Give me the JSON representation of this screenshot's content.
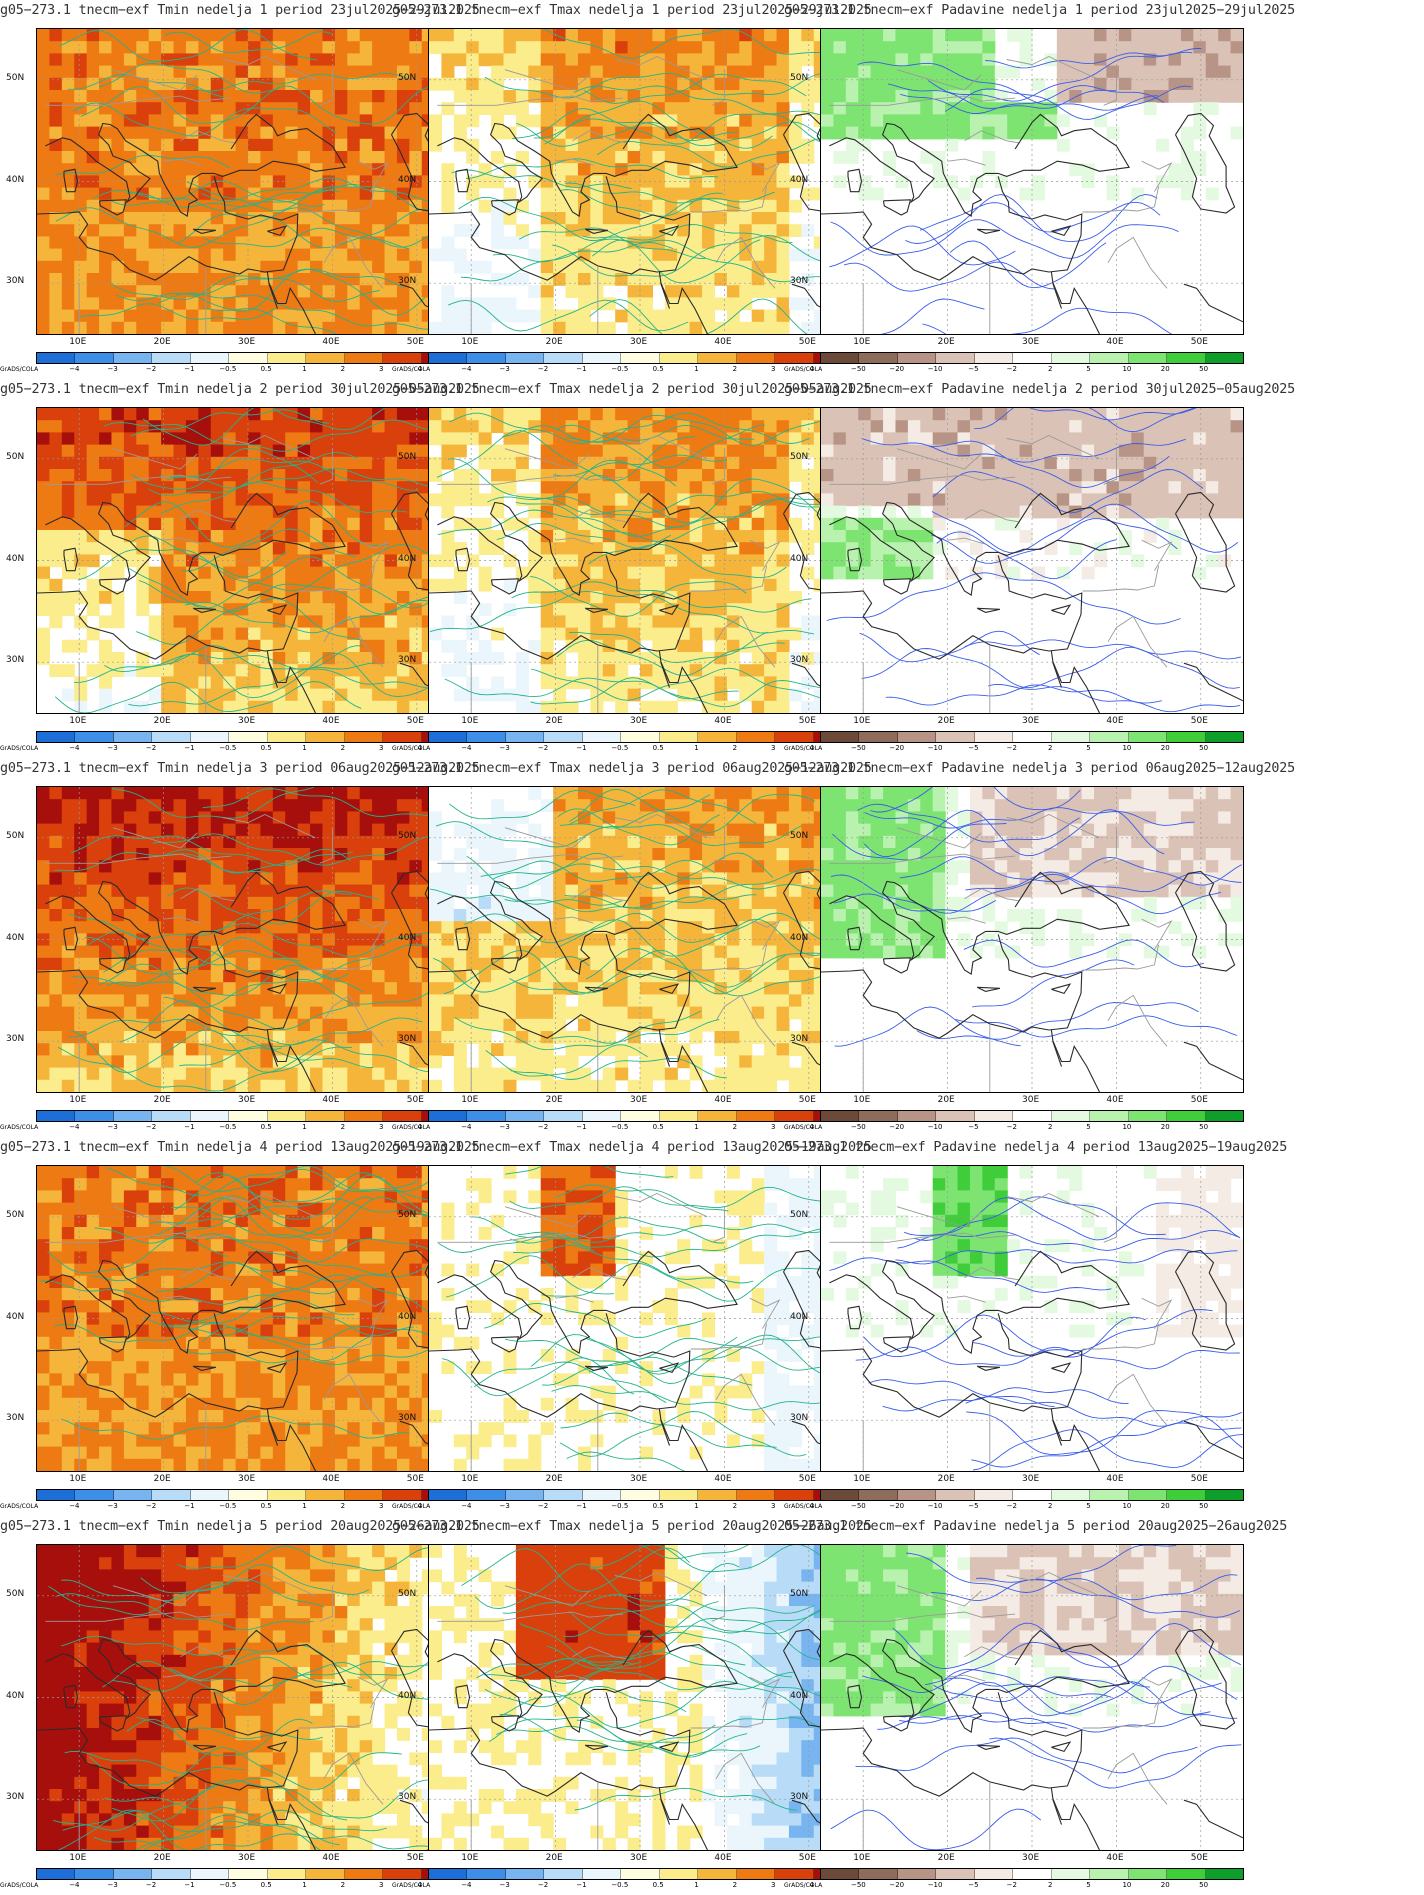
{
  "figure": {
    "rows": [
      {
        "week": 1,
        "panels": [
          {
            "variable": "Tmin",
            "title": "g05−273.1  tnecm−exf  Tmin  nedelja  1  period  23jul2025−29jul2025",
            "scale": "temperature",
            "pattern": "warm"
          },
          {
            "variable": "Tmax",
            "title": "g05−273.1  tnecm−exf  Tmax  nedelja  1  period  23jul2025−29jul2025",
            "scale": "temperature",
            "pattern": "mixed"
          },
          {
            "variable": "Padavine",
            "title": "g05−273.1  tnecm−exf  Padavine  nedelja  1  period  23jul2025−29jul2025",
            "scale": "precip",
            "pattern": "wet-north"
          }
        ]
      },
      {
        "week": 2,
        "panels": [
          {
            "variable": "Tmin",
            "title": "g05−273.1  tnecm−exf  Tmin  nedelja  2  period  30jul2025−05aug2025",
            "scale": "temperature",
            "pattern": "warm-north"
          },
          {
            "variable": "Tmax",
            "title": "g05−273.1  tnecm−exf  Tmax  nedelja  2  period  30jul2025−05aug2025",
            "scale": "temperature",
            "pattern": "mixed"
          },
          {
            "variable": "Padavine",
            "title": "g05−273.1  tnecm−exf  Padavine  nedelja  2  period  30jul2025−05aug2025",
            "scale": "precip",
            "pattern": "dry-north"
          }
        ]
      },
      {
        "week": 3,
        "panels": [
          {
            "variable": "Tmin",
            "title": "g05−273.1  tnecm−exf  Tmin  nedelja  3  period  06aug2025−12aug2025",
            "scale": "temperature",
            "pattern": "hot-north"
          },
          {
            "variable": "Tmax",
            "title": "g05−273.1  tnecm−exf  Tmax  nedelja  3  period  06aug2025−12aug2025",
            "scale": "temperature",
            "pattern": "mixed-cool-west"
          },
          {
            "variable": "Padavine",
            "title": "g05−273.1  tnecm−exf  Padavine  nedelja  3  period  06aug2025−12aug2025",
            "scale": "precip",
            "pattern": "wet-west"
          }
        ]
      },
      {
        "week": 4,
        "panels": [
          {
            "variable": "Tmin",
            "title": "g05−273.1  tnecm−exf  Tmin  nedelja  4  period  13aug2025−19aug2025",
            "scale": "temperature",
            "pattern": "warm"
          },
          {
            "variable": "Tmax",
            "title": "g05−273.1  tnecm−exf  Tmax  nedelja  4  period  13aug2025−19aug2025",
            "scale": "temperature",
            "pattern": "neutral"
          },
          {
            "variable": "Padavine",
            "title": "05−273.1  tnecm−exf  Padavine  nedelja  4  period  13aug2025−19aug2025",
            "scale": "precip",
            "pattern": "neutral"
          }
        ]
      },
      {
        "week": 5,
        "panels": [
          {
            "variable": "Tmin",
            "title": "g05−273.1  tnecm−exf  Tmin  nedelja  5  period  20aug2025−26aug2025",
            "scale": "temperature",
            "pattern": "hot-west"
          },
          {
            "variable": "Tmax",
            "title": "g05−273.1  tnecm−exf  Tmax  nedelja  5  period  20aug2025−26aug2025",
            "scale": "temperature",
            "pattern": "hot-center-cool-east"
          },
          {
            "variable": "Padavine",
            "title": "05−273.1  tnecm−exf  Padavine  nedelja  5  period  20aug2025−26aug2025",
            "scale": "precip",
            "pattern": "wet-west"
          }
        ]
      }
    ],
    "axes": {
      "lat_labels": [
        "50N",
        "40N",
        "30N"
      ],
      "lon_labels": [
        "10E",
        "20E",
        "30E",
        "40E",
        "50E"
      ]
    },
    "colorbars": {
      "temperature": {
        "colors": [
          "#1e6ed8",
          "#3d8ee6",
          "#78b4f0",
          "#b8dcf8",
          "#eaf6fc",
          "#fffde0",
          "#fbec8c",
          "#f5b53a",
          "#ee7a14",
          "#d9400c",
          "#a70f0c"
        ],
        "labels": [
          "−4",
          "−3",
          "−2",
          "−1",
          "−0.5",
          "0.5",
          "1",
          "2",
          "3",
          "4"
        ]
      },
      "precip": {
        "colors": [
          "#6b4a3a",
          "#8e6c5c",
          "#b79486",
          "#dbc2b6",
          "#f4ebe4",
          "#ffffff",
          "#e4fae0",
          "#b8f2ae",
          "#7de471",
          "#3fcd3a",
          "#0e9e2a"
        ],
        "labels": [
          "−50",
          "−20",
          "−10",
          "−5",
          "−2",
          "2",
          "5",
          "10",
          "20",
          "50"
        ]
      }
    },
    "credit": "GrADS/COLA"
  }
}
